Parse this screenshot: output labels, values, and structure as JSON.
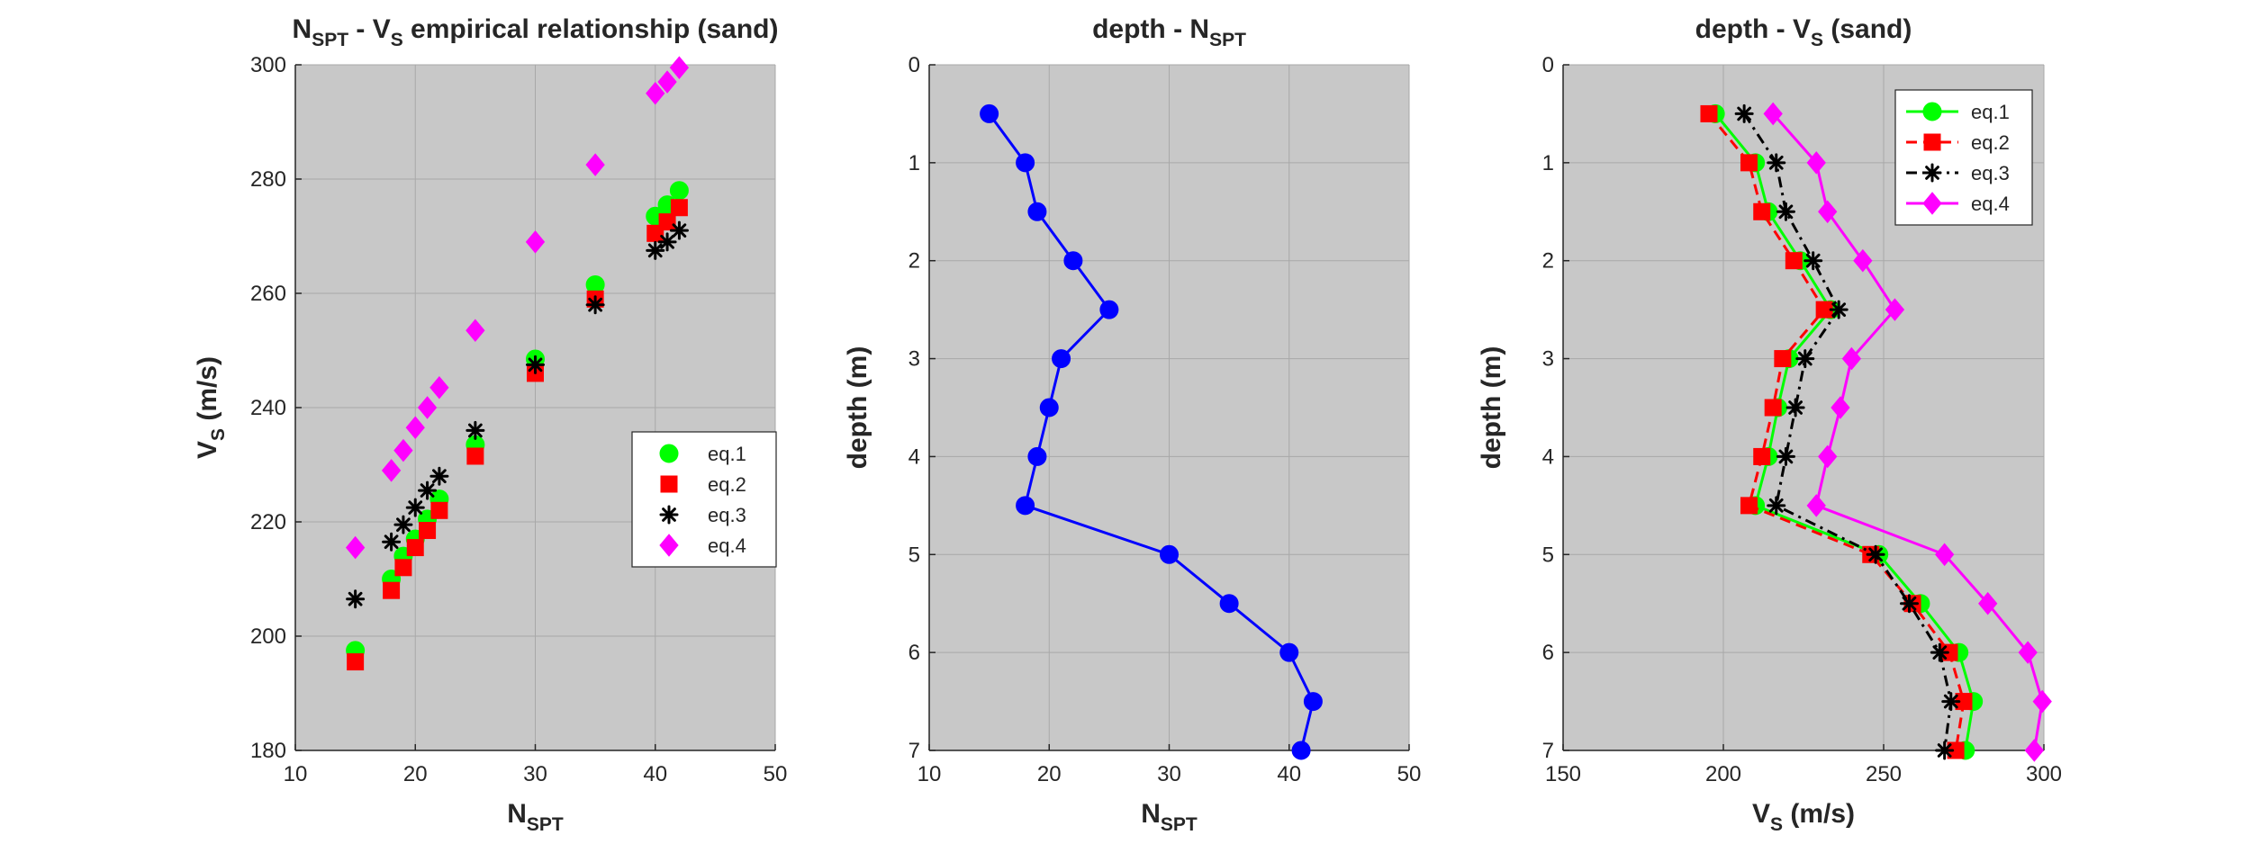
{
  "chart_data": [
    {
      "type": "scatter",
      "title": {
        "main": "N",
        "sub": "SPT",
        "mid": " - V",
        "sub2": "S",
        "rest": "  empirical relationship (sand)"
      },
      "xlabel": {
        "main": "N",
        "sub": "SPT"
      },
      "ylabel": {
        "main": "V",
        "sub": "S",
        "rest": " (m/s)"
      },
      "xlim": [
        10,
        50
      ],
      "ylim": [
        180,
        300
      ],
      "xticks": [
        "10",
        "20",
        "30",
        "40",
        "50"
      ],
      "yticks": [
        "180",
        "200",
        "220",
        "240",
        "260",
        "280",
        "300"
      ],
      "grid": true,
      "legend_position": "right",
      "series": [
        {
          "name": "eq.1",
          "color": "#00ff00",
          "marker": "circle",
          "x": [
            15,
            18,
            19,
            20,
            21,
            22,
            25,
            30,
            35,
            40,
            41,
            42
          ],
          "y": [
            197.5,
            210,
            214,
            217,
            220.5,
            224,
            233.5,
            248.5,
            261.5,
            273.5,
            275.5,
            278
          ]
        },
        {
          "name": "eq.2",
          "color": "#ff0000",
          "marker": "square",
          "x": [
            15,
            18,
            19,
            20,
            21,
            22,
            25,
            30,
            35,
            40,
            41,
            42
          ],
          "y": [
            195.5,
            208,
            212,
            215.5,
            218.5,
            222,
            231.5,
            246,
            259,
            270.5,
            272.5,
            275
          ]
        },
        {
          "name": "eq.3",
          "color": "#000000",
          "marker": "asterisk",
          "x": [
            15,
            18,
            19,
            20,
            21,
            22,
            25,
            30,
            35,
            40,
            41,
            42
          ],
          "y": [
            206.5,
            216.5,
            219.5,
            222.5,
            225.5,
            228,
            236,
            247.5,
            258,
            267.5,
            269,
            271
          ]
        },
        {
          "name": "eq.4",
          "color": "#ff00ff",
          "marker": "diamond",
          "x": [
            15,
            18,
            19,
            20,
            21,
            22,
            25,
            30,
            35,
            40,
            41,
            42
          ],
          "y": [
            215.5,
            229,
            232.5,
            236.5,
            240,
            243.5,
            253.5,
            269,
            282.5,
            295,
            297,
            299.5
          ]
        }
      ]
    },
    {
      "type": "line",
      "title": {
        "main": "depth - N",
        "sub": "SPT"
      },
      "xlabel": {
        "main": "N",
        "sub": "SPT"
      },
      "ylabel": {
        "main": "depth (m)"
      },
      "xlim": [
        10,
        50
      ],
      "ylim": [
        0,
        7
      ],
      "y_reversed": true,
      "xticks": [
        "10",
        "20",
        "30",
        "40",
        "50"
      ],
      "yticks": [
        "0",
        "1",
        "2",
        "3",
        "4",
        "5",
        "6",
        "7"
      ],
      "grid": true,
      "series": [
        {
          "color": "#0000ff",
          "marker": "circle",
          "line": "solid",
          "x": [
            15,
            18,
            19,
            22,
            25,
            21,
            20,
            19,
            18,
            30,
            35,
            40,
            42,
            41
          ],
          "y": [
            0.5,
            1.0,
            1.5,
            2.0,
            2.5,
            3.0,
            3.5,
            4.0,
            4.5,
            5.0,
            5.5,
            6.0,
            6.5,
            7.0
          ]
        }
      ]
    },
    {
      "type": "line",
      "title": {
        "main": "depth - V",
        "sub": "S",
        "rest": " (sand)"
      },
      "xlabel": {
        "main": "V",
        "sub": "S",
        "rest": " (m/s)"
      },
      "ylabel": {
        "main": "depth (m)"
      },
      "xlim": [
        150,
        300
      ],
      "ylim": [
        0,
        7
      ],
      "y_reversed": true,
      "xticks": [
        "150",
        "200",
        "250",
        "300"
      ],
      "yticks": [
        "0",
        "1",
        "2",
        "3",
        "4",
        "5",
        "6",
        "7"
      ],
      "grid": true,
      "legend_position": "top-right",
      "depth": [
        0.5,
        1.0,
        1.5,
        2.0,
        2.5,
        3.0,
        3.5,
        4.0,
        4.5,
        5.0,
        5.5,
        6.0,
        6.5,
        7.0
      ],
      "series": [
        {
          "name": "eq.1",
          "color": "#00ff00",
          "marker": "circle",
          "line": "solid",
          "x": [
            197.5,
            210,
            214,
            224,
            233.5,
            220.5,
            217,
            214,
            210,
            248.5,
            261.5,
            273.5,
            278,
            275.5
          ]
        },
        {
          "name": "eq.2",
          "color": "#ff0000",
          "marker": "square",
          "line": "dashed",
          "x": [
            195.5,
            208,
            212,
            222,
            231.5,
            218.5,
            215.5,
            212,
            208,
            246,
            259,
            270.5,
            275,
            272.5
          ]
        },
        {
          "name": "eq.3",
          "color": "#000000",
          "marker": "asterisk",
          "line": "dashdot",
          "x": [
            206.5,
            216.5,
            219.5,
            228,
            236,
            225.5,
            222.5,
            219.5,
            216.5,
            247.5,
            258,
            267.5,
            271,
            269
          ]
        },
        {
          "name": "eq.4",
          "color": "#ff00ff",
          "marker": "diamond",
          "line": "solid",
          "x": [
            215.5,
            229,
            232.5,
            243.5,
            253.5,
            240,
            236.5,
            232.5,
            229,
            269,
            282.5,
            295,
            299.5,
            297
          ]
        }
      ]
    }
  ]
}
